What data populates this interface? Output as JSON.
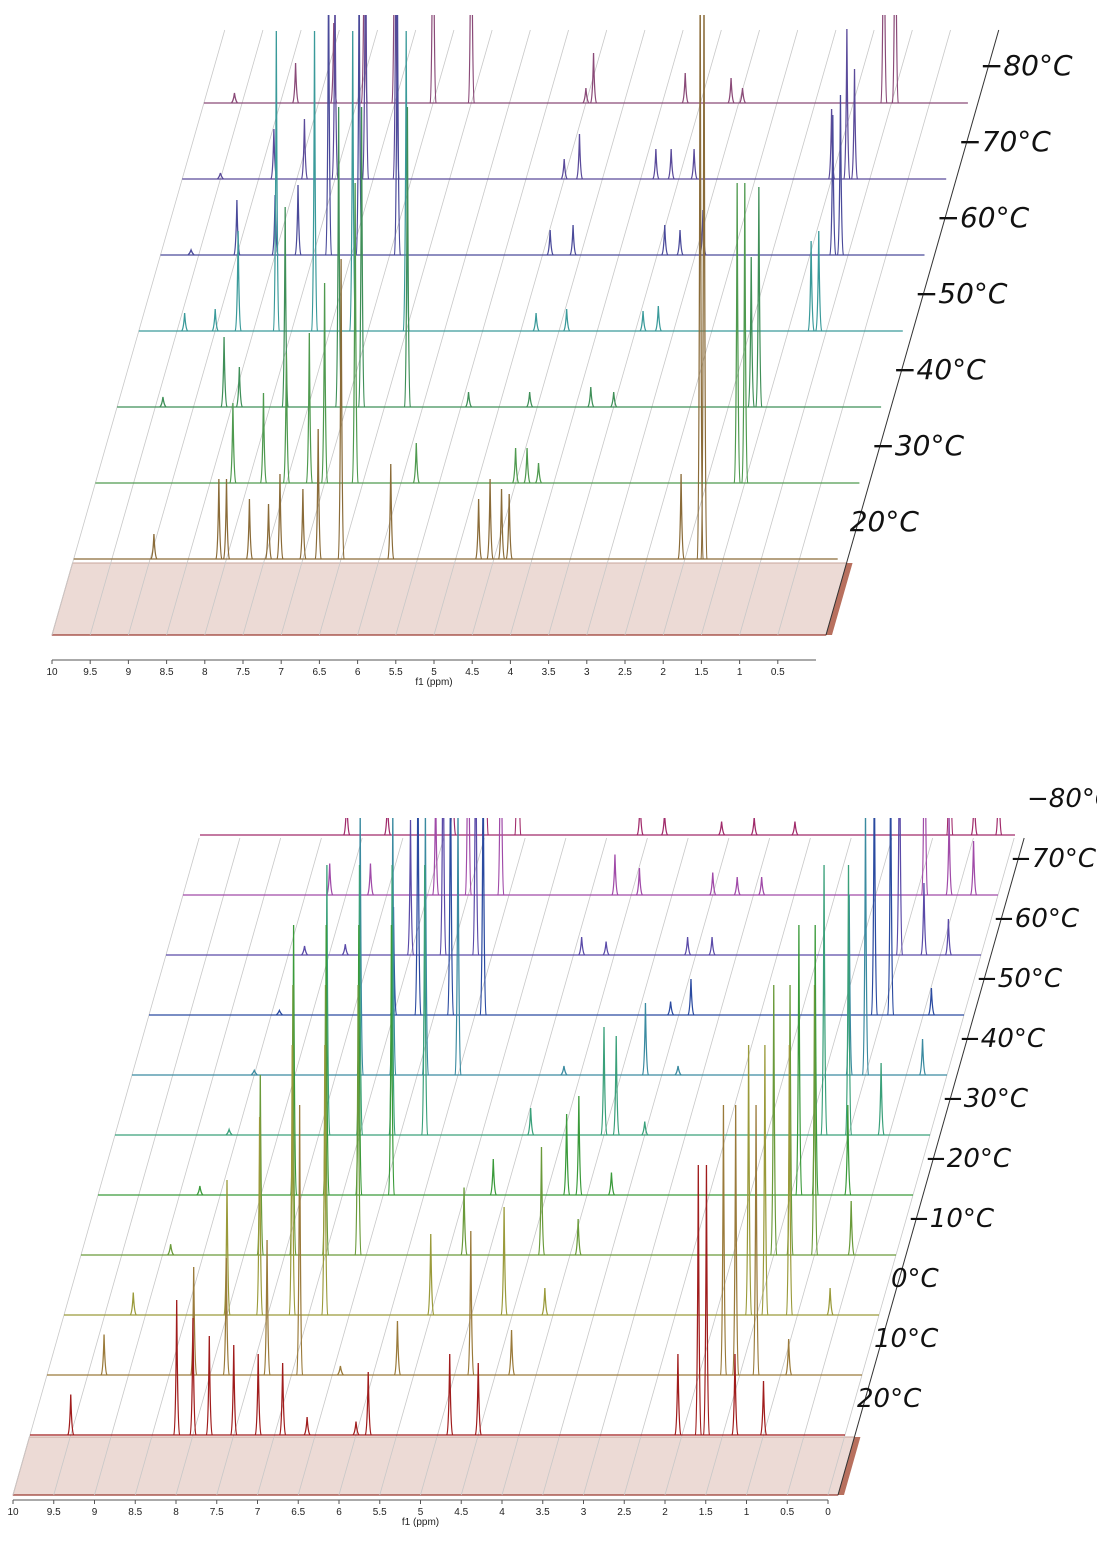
{
  "chart_data": [
    {
      "type": "waterfall",
      "xlabel": "f1 (ppm)",
      "xlim": [
        10,
        0
      ],
      "xticks": [
        10,
        9.5,
        9,
        8.5,
        8,
        7.5,
        7,
        6.5,
        6,
        5.5,
        5,
        4.5,
        4,
        3.5,
        3,
        2.5,
        2,
        1.5,
        1,
        0.5
      ],
      "floor_color": "#ecdad5",
      "series": [
        {
          "name": "20°C",
          "color": "#8a6b38",
          "x": [
            8.95,
            8.1,
            8.0,
            7.7,
            7.45,
            7.3,
            7.0,
            6.8,
            6.5,
            5.85,
            4.7,
            4.55,
            4.4,
            4.3,
            2.05,
            1.8,
            1.75
          ],
          "values": [
            25,
            80,
            80,
            60,
            55,
            85,
            70,
            130,
            300,
            95,
            60,
            80,
            70,
            65,
            85,
            600,
            600
          ]
        },
        {
          "name": "−30°C",
          "color": "#4f9a4f",
          "x": [
            8.2,
            7.8,
            7.5,
            7.2,
            7.0,
            6.6,
            5.8,
            4.5,
            4.35,
            4.2,
            1.6,
            1.5
          ],
          "values": [
            80,
            90,
            130,
            150,
            200,
            300,
            40,
            35,
            35,
            20,
            300,
            300
          ]
        },
        {
          "name": "−40°C",
          "color": "#3f8f58",
          "x": [
            9.4,
            8.6,
            8.4,
            7.8,
            7.1,
            6.8,
            6.2,
            5.4,
            4.6,
            3.8,
            3.5,
            1.7,
            1.6
          ],
          "values": [
            10,
            70,
            40,
            200,
            300,
            300,
            300,
            15,
            15,
            20,
            15,
            150,
            220
          ]
        },
        {
          "name": "−50°C",
          "color": "#3a9a9a",
          "x": [
            9.4,
            9.0,
            8.7,
            8.2,
            7.7,
            7.2,
            6.5,
            4.8,
            4.4,
            3.4,
            3.2,
            1.2,
            1.1
          ],
          "values": [
            18,
            22,
            100,
            300,
            300,
            300,
            300,
            18,
            22,
            20,
            25,
            90,
            100
          ]
        },
        {
          "name": "−60°C",
          "color": "#4a4a9a",
          "x": [
            9.6,
            9.0,
            8.5,
            8.2,
            7.8,
            7.4,
            6.9,
            4.9,
            4.6,
            3.4,
            3.2,
            2.9,
            1.2,
            1.1
          ],
          "values": [
            5,
            55,
            60,
            70,
            300,
            300,
            300,
            25,
            30,
            30,
            25,
            45,
            140,
            160
          ]
        },
        {
          "name": "−70°C",
          "color": "#5a4a9a",
          "x": [
            9.5,
            8.8,
            8.4,
            8.0,
            7.6,
            7.2,
            5.0,
            4.8,
            3.8,
            3.6,
            3.3,
            1.5,
            1.3,
            1.2
          ],
          "values": [
            6,
            50,
            60,
            200,
            300,
            300,
            20,
            45,
            30,
            30,
            30,
            70,
            150,
            110
          ]
        },
        {
          "name": "−80°C",
          "color": "#8a4a78",
          "x": [
            9.6,
            8.8,
            8.3,
            7.9,
            7.5,
            7.0,
            6.5,
            5.0,
            4.9,
            3.7,
            3.1,
            2.95,
            1.1,
            0.95
          ],
          "values": [
            10,
            40,
            80,
            200,
            300,
            300,
            300,
            15,
            50,
            30,
            25,
            15,
            300,
            300
          ]
        }
      ]
    },
    {
      "type": "waterfall",
      "xlabel": "f1 (ppm)",
      "xlim": [
        10,
        0
      ],
      "xticks": [
        10,
        9.5,
        9,
        8.5,
        8,
        7.5,
        7,
        6.5,
        6,
        5.5,
        5,
        4.5,
        4,
        3.5,
        3,
        2.5,
        2,
        1.5,
        1,
        0.5,
        0
      ],
      "floor_color": "#ecdad5",
      "series": [
        {
          "name": "20°C",
          "color": "#a01c1c",
          "x": [
            9.5,
            8.2,
            8.0,
            7.8,
            7.5,
            7.2,
            6.9,
            6.6,
            6.0,
            5.85,
            4.85,
            4.5,
            2.05,
            1.8,
            1.7,
            1.35,
            1.0
          ],
          "values": [
            45,
            150,
            130,
            110,
            100,
            90,
            80,
            20,
            15,
            70,
            90,
            80,
            90,
            300,
            300,
            90,
            60
          ]
        },
        {
          "name": "10°C",
          "color": "#9a7a3a",
          "x": [
            9.3,
            8.2,
            7.8,
            7.3,
            6.9,
            6.4,
            5.7,
            4.8,
            4.3,
            1.7,
            1.55,
            1.3,
            0.9
          ],
          "values": [
            45,
            120,
            130,
            150,
            300,
            10,
            60,
            160,
            50,
            300,
            300,
            300,
            40
          ]
        },
        {
          "name": "0°C",
          "color": "#9a9a3a",
          "x": [
            9.15,
            8.0,
            7.6,
            7.2,
            6.8,
            5.5,
            4.6,
            4.1,
            1.6,
            1.4,
            1.1,
            0.6
          ],
          "values": [
            25,
            150,
            220,
            300,
            300,
            90,
            120,
            30,
            300,
            300,
            300,
            30
          ]
        },
        {
          "name": "−10°C",
          "color": "#6a9a3a",
          "x": [
            8.9,
            7.8,
            7.4,
            7.0,
            6.6,
            5.3,
            4.35,
            3.9,
            1.5,
            1.3,
            1.0,
            0.55
          ],
          "values": [
            12,
            200,
            300,
            300,
            300,
            75,
            120,
            40,
            300,
            300,
            300,
            60
          ]
        },
        {
          "name": "−20°C",
          "color": "#3a9a3a",
          "x": [
            8.75,
            7.6,
            7.2,
            6.8,
            6.4,
            5.15,
            4.25,
            4.1,
            3.7,
            1.4,
            1.2,
            0.8
          ],
          "values": [
            10,
            300,
            300,
            300,
            300,
            40,
            90,
            110,
            25,
            300,
            300,
            100
          ]
        },
        {
          "name": "−30°C",
          "color": "#3aa07a",
          "x": [
            8.6,
            7.4,
            7.0,
            6.6,
            6.2,
            4.9,
            4.0,
            3.85,
            3.5,
            1.3,
            1.0,
            0.6
          ],
          "values": [
            6,
            300,
            300,
            300,
            300,
            30,
            120,
            110,
            15,
            300,
            300,
            80
          ]
        },
        {
          "name": "−40°C",
          "color": "#3a8aa0",
          "x": [
            8.5,
            7.2,
            6.8,
            6.4,
            6.0,
            4.7,
            3.7,
            3.3,
            1.2,
            1.0,
            0.3
          ],
          "values": [
            5,
            300,
            300,
            300,
            300,
            10,
            80,
            10,
            200,
            300,
            40
          ]
        },
        {
          "name": "−50°C",
          "color": "#2a4aa0",
          "x": [
            8.4,
            7.0,
            6.7,
            6.3,
            5.9,
            3.6,
            3.35,
            1.1,
            0.9,
            0.4
          ],
          "values": [
            5,
            120,
            300,
            300,
            300,
            15,
            40,
            300,
            300,
            30
          ]
        },
        {
          "name": "−60°C",
          "color": "#5a4aa8",
          "x": [
            8.3,
            7.8,
            7.0,
            6.6,
            6.2,
            4.9,
            4.6,
            3.6,
            3.3,
            1.0,
            0.7,
            0.4
          ],
          "values": [
            10,
            12,
            150,
            300,
            300,
            20,
            15,
            20,
            20,
            300,
            80,
            40
          ]
        },
        {
          "name": "−70°C",
          "color": "#a04aa8",
          "x": [
            8.2,
            7.7,
            6.9,
            6.5,
            6.1,
            4.7,
            4.4,
            3.5,
            3.2,
            2.9,
            0.9,
            0.6,
            0.3
          ],
          "values": [
            35,
            35,
            120,
            300,
            300,
            45,
            30,
            25,
            20,
            20,
            300,
            90,
            60
          ]
        },
        {
          "name": "−80°C",
          "color": "#a02a6a",
          "x": [
            8.2,
            7.7,
            6.9,
            6.5,
            6.1,
            4.6,
            4.3,
            3.6,
            3.2,
            2.7,
            0.8,
            0.5,
            0.2
          ],
          "values": [
            45,
            40,
            100,
            300,
            300,
            40,
            25,
            15,
            20,
            15,
            300,
            50,
            80
          ]
        }
      ]
    }
  ]
}
